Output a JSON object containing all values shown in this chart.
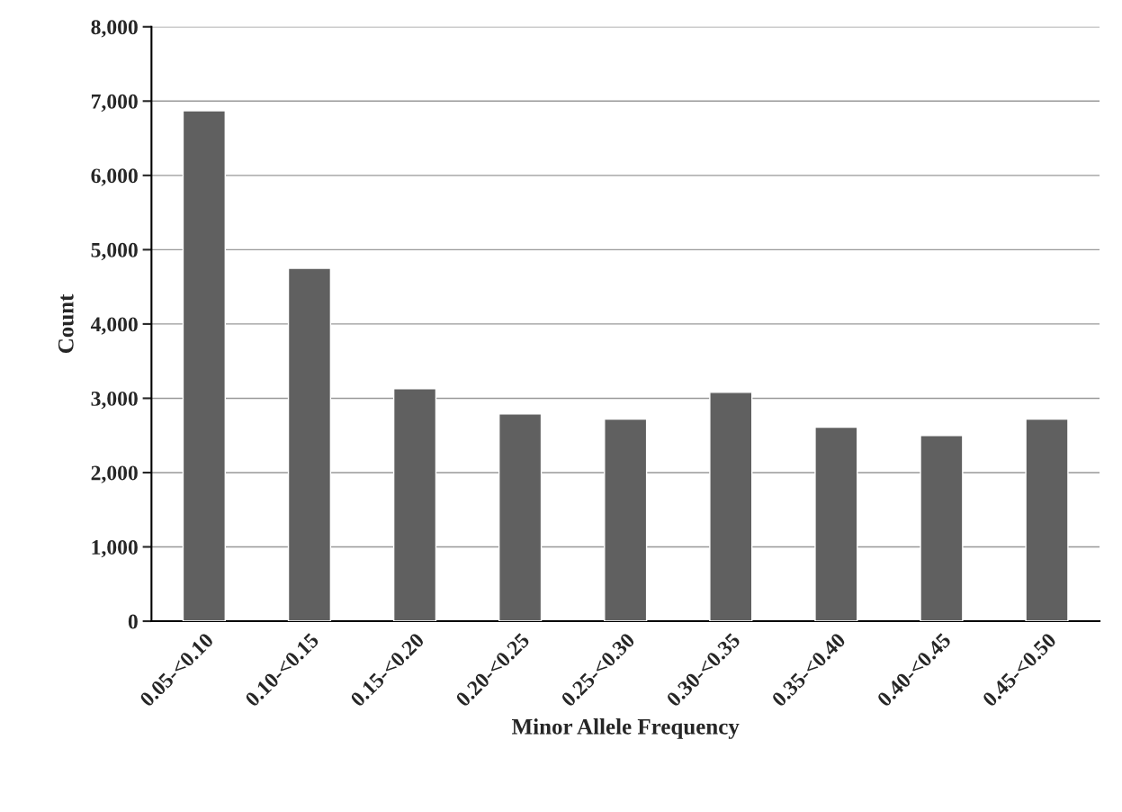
{
  "chart_data": {
    "type": "bar",
    "xlabel": "Minor Allele Frequency",
    "ylabel": "Count",
    "categories": [
      "0.05-<0.10",
      "0.10-<0.15",
      "0.15-<0.20",
      "0.20-<0.25",
      "0.25-<0.30",
      "0.30-<0.35",
      "0.35-<0.40",
      "0.40-<0.45",
      "0.45-<0.50"
    ],
    "values": [
      6870,
      4750,
      3130,
      2790,
      2720,
      3080,
      2610,
      2500,
      2720
    ],
    "color": "#606060",
    "ylim": [
      0,
      8000
    ],
    "yticks": [
      {
        "value": 0,
        "label": "0"
      },
      {
        "value": 1000,
        "label": "1,000"
      },
      {
        "value": 2000,
        "label": "2,000"
      },
      {
        "value": 3000,
        "label": "3,000"
      },
      {
        "value": 4000,
        "label": "4,000"
      },
      {
        "value": 5000,
        "label": "5,000"
      },
      {
        "value": 6000,
        "label": "6,000"
      },
      {
        "value": 7000,
        "label": "7,000"
      },
      {
        "value": 8000,
        "label": "8,000"
      }
    ],
    "grid": "y",
    "legend": false
  }
}
